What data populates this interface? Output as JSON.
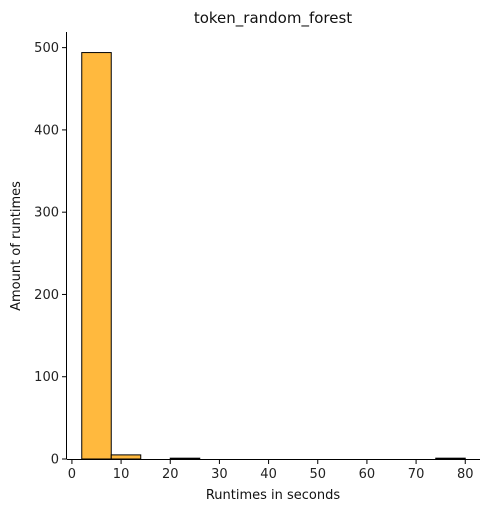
{
  "chart_data": {
    "type": "bar",
    "title": "token_random_forest",
    "xlabel": "Runtimes in seconds",
    "ylabel": "Amount of runtimes",
    "bins": [
      {
        "start": 2.0,
        "end": 8.0,
        "count": 494
      },
      {
        "start": 8.0,
        "end": 14.0,
        "count": 5
      },
      {
        "start": 14.0,
        "end": 20.0,
        "count": 0
      },
      {
        "start": 20.0,
        "end": 26.0,
        "count": 1
      },
      {
        "start": 26.0,
        "end": 32.0,
        "count": 0
      },
      {
        "start": 32.0,
        "end": 38.0,
        "count": 0
      },
      {
        "start": 38.0,
        "end": 44.0,
        "count": 0
      },
      {
        "start": 44.0,
        "end": 50.0,
        "count": 0
      },
      {
        "start": 50.0,
        "end": 56.0,
        "count": 0
      },
      {
        "start": 56.0,
        "end": 62.0,
        "count": 0
      },
      {
        "start": 62.0,
        "end": 68.0,
        "count": 0
      },
      {
        "start": 68.0,
        "end": 74.0,
        "count": 0
      },
      {
        "start": 74.0,
        "end": 80.0,
        "count": 1
      }
    ],
    "xticks": [
      0,
      10,
      20,
      30,
      40,
      50,
      60,
      70,
      80
    ],
    "yticks": [
      0,
      100,
      200,
      300,
      400,
      500
    ],
    "xlim": [
      -1.0,
      83.0
    ],
    "ylim": [
      0,
      519
    ],
    "bar_color": "#ffb93e",
    "edge_color": "#000000",
    "grid": false,
    "legend": "none"
  }
}
